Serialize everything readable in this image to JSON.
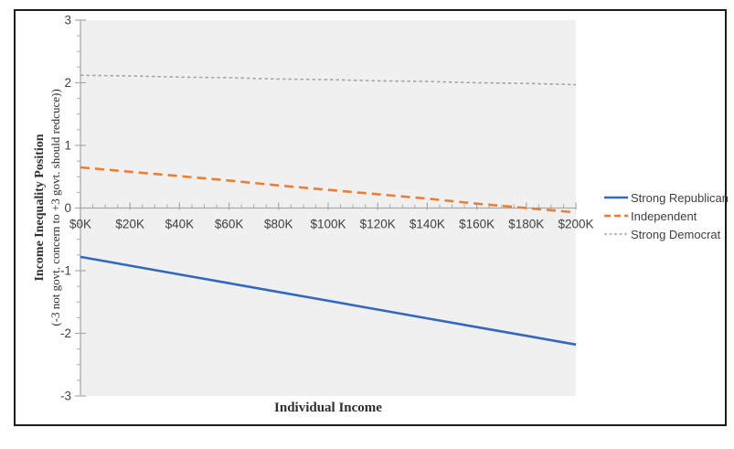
{
  "chart_data": {
    "type": "line",
    "title": "",
    "xlabel": "Individual Income",
    "ylabel_title": "Income Inequality Position",
    "ylabel_subtitle": "(-3 not govt. concern to +3 govt. should redcuce))",
    "categories": [
      "$0K",
      "$20K",
      "$40K",
      "$60K",
      "$80K",
      "$100K",
      "$120K",
      "$140K",
      "$160K",
      "$180K",
      "$200K"
    ],
    "series": [
      {
        "name": "Strong Republican",
        "color": "#3269BE",
        "line_style": "solid",
        "values": [
          -0.78,
          -0.92,
          -1.06,
          -1.2,
          -1.34,
          -1.48,
          -1.62,
          -1.76,
          -1.9,
          -2.04,
          -2.18
        ]
      },
      {
        "name": "Independent",
        "color": "#ED7D31",
        "line_style": "dashed",
        "values": [
          0.65,
          0.58,
          0.51,
          0.44,
          0.36,
          0.29,
          0.22,
          0.15,
          0.07,
          0.0,
          -0.07
        ]
      },
      {
        "name": "Strong Democrat",
        "color": "#A5A5A5",
        "line_style": "dotted",
        "values": [
          2.12,
          2.11,
          2.09,
          2.08,
          2.06,
          2.05,
          2.03,
          2.02,
          2.0,
          1.99,
          1.97
        ]
      }
    ],
    "ylim": [
      -3,
      3
    ],
    "y_ticks": [
      "3",
      "2",
      "1",
      "0",
      "-1",
      "-2",
      "-3"
    ],
    "y_tick_values": [
      3,
      2,
      1,
      0,
      -1,
      -2,
      -3
    ],
    "y_minor_divisions": 4,
    "x_minor_divisions": 4,
    "grid": false,
    "legend_position": "right",
    "plot_bg_color": "#F0F0F0",
    "axis_color": "#A9A9A9",
    "tick_label_color": "#3F3F3F"
  }
}
